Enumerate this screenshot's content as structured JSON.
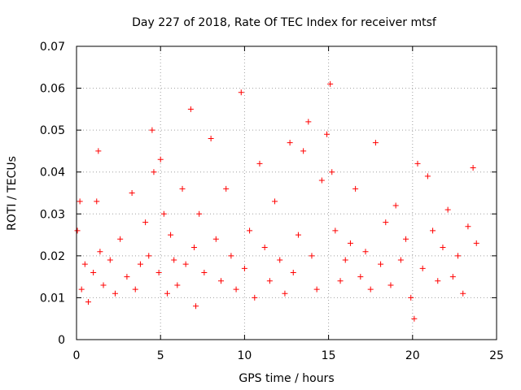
{
  "chart_data": {
    "type": "scatter",
    "title": "Day 227 of 2018, Rate Of TEC Index for receiver mtsf",
    "xlabel": "GPS time / hours",
    "ylabel": "ROTI / TECUs",
    "xlim": [
      0,
      25
    ],
    "ylim": [
      0,
      0.07
    ],
    "xticks": [
      0,
      5,
      10,
      15,
      20,
      25
    ],
    "xtick_labels": [
      "0",
      "5",
      "10",
      "15",
      "20",
      "25"
    ],
    "yticks": [
      0,
      0.01,
      0.02,
      0.03,
      0.04,
      0.05,
      0.06,
      0.07
    ],
    "ytick_labels": [
      "0",
      "0.01",
      "0.02",
      "0.03",
      "0.04",
      "0.05",
      "0.06",
      "0.07"
    ],
    "grid": true,
    "marker": "plus",
    "color": "#ff0000",
    "series": [
      {
        "name": "ROTI",
        "x": [
          0.05,
          0.2,
          0.3,
          0.5,
          0.7,
          1.0,
          1.2,
          1.3,
          1.4,
          1.6,
          2.0,
          2.3,
          2.6,
          3.0,
          3.3,
          3.5,
          3.8,
          4.1,
          4.3,
          4.5,
          4.6,
          4.9,
          5.0,
          5.2,
          5.4,
          5.6,
          5.8,
          6.0,
          6.3,
          6.5,
          6.8,
          7.0,
          7.1,
          7.3,
          7.6,
          8.0,
          8.3,
          8.6,
          8.9,
          9.2,
          9.5,
          9.8,
          10.0,
          10.3,
          10.6,
          10.9,
          11.2,
          11.5,
          11.8,
          12.1,
          12.4,
          12.7,
          12.9,
          13.2,
          13.5,
          13.8,
          14.0,
          14.3,
          14.6,
          14.9,
          15.1,
          15.2,
          15.4,
          15.7,
          16.0,
          16.3,
          16.6,
          16.9,
          17.2,
          17.5,
          17.8,
          18.1,
          18.4,
          18.7,
          19.0,
          19.3,
          19.6,
          19.9,
          20.1,
          20.3,
          20.6,
          20.9,
          21.2,
          21.5,
          21.8,
          22.1,
          22.4,
          22.7,
          23.0,
          23.3,
          23.6,
          23.8
        ],
        "y": [
          0.026,
          0.033,
          0.012,
          0.018,
          0.009,
          0.016,
          0.033,
          0.045,
          0.021,
          0.013,
          0.019,
          0.011,
          0.024,
          0.015,
          0.035,
          0.012,
          0.018,
          0.028,
          0.02,
          0.05,
          0.04,
          0.016,
          0.043,
          0.03,
          0.011,
          0.025,
          0.019,
          0.013,
          0.036,
          0.018,
          0.055,
          0.022,
          0.008,
          0.03,
          0.016,
          0.048,
          0.024,
          0.014,
          0.036,
          0.02,
          0.012,
          0.059,
          0.017,
          0.026,
          0.01,
          0.042,
          0.022,
          0.014,
          0.033,
          0.019,
          0.011,
          0.047,
          0.016,
          0.025,
          0.045,
          0.052,
          0.02,
          0.012,
          0.038,
          0.049,
          0.061,
          0.04,
          0.026,
          0.014,
          0.019,
          0.023,
          0.036,
          0.015,
          0.021,
          0.012,
          0.047,
          0.018,
          0.028,
          0.013,
          0.032,
          0.019,
          0.024,
          0.01,
          0.005,
          0.042,
          0.017,
          0.039,
          0.026,
          0.014,
          0.022,
          0.031,
          0.015,
          0.02,
          0.011,
          0.027,
          0.041,
          0.023
        ]
      }
    ]
  }
}
